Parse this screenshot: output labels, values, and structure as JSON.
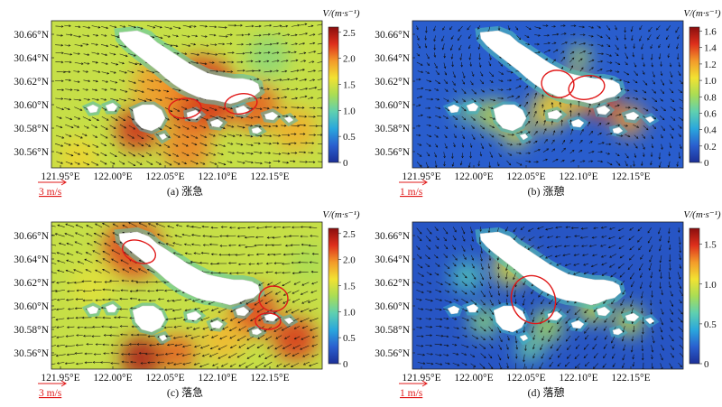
{
  "panels": [
    {
      "id": "a",
      "caption": "(a) 涨急",
      "colorbar_label": "V/(m·s⁻¹)",
      "colorbar_ticks": [
        "2.5",
        "2.0",
        "1.5",
        "1.0",
        "0.5",
        "0"
      ],
      "colorbar_max": 2.6,
      "scale_label": "3 m/s",
      "lat_labels": [
        "30.66°N",
        "30.64°N",
        "30.62°N",
        "30.60°N",
        "30.58°N",
        "30.56°N"
      ],
      "lon_labels": [
        "121.95°E",
        "122.00°E",
        "122.05°E",
        "122.10°E",
        "122.15°E"
      ],
      "background_level": 0.55,
      "flow_direction": "west-to-east, slightly southeast",
      "annotation_ellipses": 2
    },
    {
      "id": "b",
      "caption": "(b) 涨憩",
      "colorbar_label": "V/(m·s⁻¹)",
      "colorbar_ticks": [
        "1.6",
        "1.4",
        "1.2",
        "1.0",
        "0.8",
        "0.6",
        "0.4",
        "0.2",
        "0"
      ],
      "colorbar_max": 1.65,
      "scale_label": "1 m/s",
      "lat_labels": [
        "30.66°N",
        "30.64°N",
        "30.62°N",
        "30.60°N",
        "30.58°N",
        "30.56°N"
      ],
      "lon_labels": [
        "121.95°E",
        "122.00°E",
        "122.05°E",
        "122.10°E",
        "122.15°E"
      ],
      "background_level": 0.12,
      "flow_direction": "weak, variable",
      "annotation_ellipses": 2
    },
    {
      "id": "c",
      "caption": "(c) 落急",
      "colorbar_label": "V/(m·s⁻¹)",
      "colorbar_ticks": [
        "2.5",
        "2.0",
        "1.5",
        "1.0",
        "0.5",
        "0"
      ],
      "colorbar_max": 2.6,
      "scale_label": "3 m/s",
      "lat_labels": [
        "30.66°N",
        "30.64°N",
        "30.62°N",
        "30.60°N",
        "30.58°N",
        "30.56°N"
      ],
      "lon_labels": [
        "121.95°E",
        "122.00°E",
        "122.05°E",
        "122.10°E",
        "122.15°E"
      ],
      "background_level": 0.55,
      "flow_direction": "east-to-west",
      "annotation_ellipses": 3
    },
    {
      "id": "d",
      "caption": "(d) 落憩",
      "colorbar_label": "V/(m·s⁻¹)",
      "colorbar_ticks": [
        "1.5",
        "1.0",
        "0.5",
        "0"
      ],
      "colorbar_max": 1.7,
      "scale_label": "1 m/s",
      "lat_labels": [
        "30.66°N",
        "30.64°N",
        "30.62°N",
        "30.60°N",
        "30.58°N",
        "30.56°N"
      ],
      "lon_labels": [
        "121.95°E",
        "122.00°E",
        "122.05°E",
        "122.10°E",
        "122.15°E"
      ],
      "background_level": 0.1,
      "flow_direction": "weak, curving north-south",
      "annotation_ellipses": 1
    }
  ],
  "colors": {
    "colormap": [
      "#1c2f96",
      "#2a5fcf",
      "#2aa7dd",
      "#5fd0b0",
      "#a9dd55",
      "#f2e232",
      "#f39a2a",
      "#de2f1c",
      "#8a0e0e"
    ],
    "land": "#ffffff",
    "annotation": "#e01818",
    "arrow": "#101010",
    "scale_arrow": "#e01818"
  }
}
